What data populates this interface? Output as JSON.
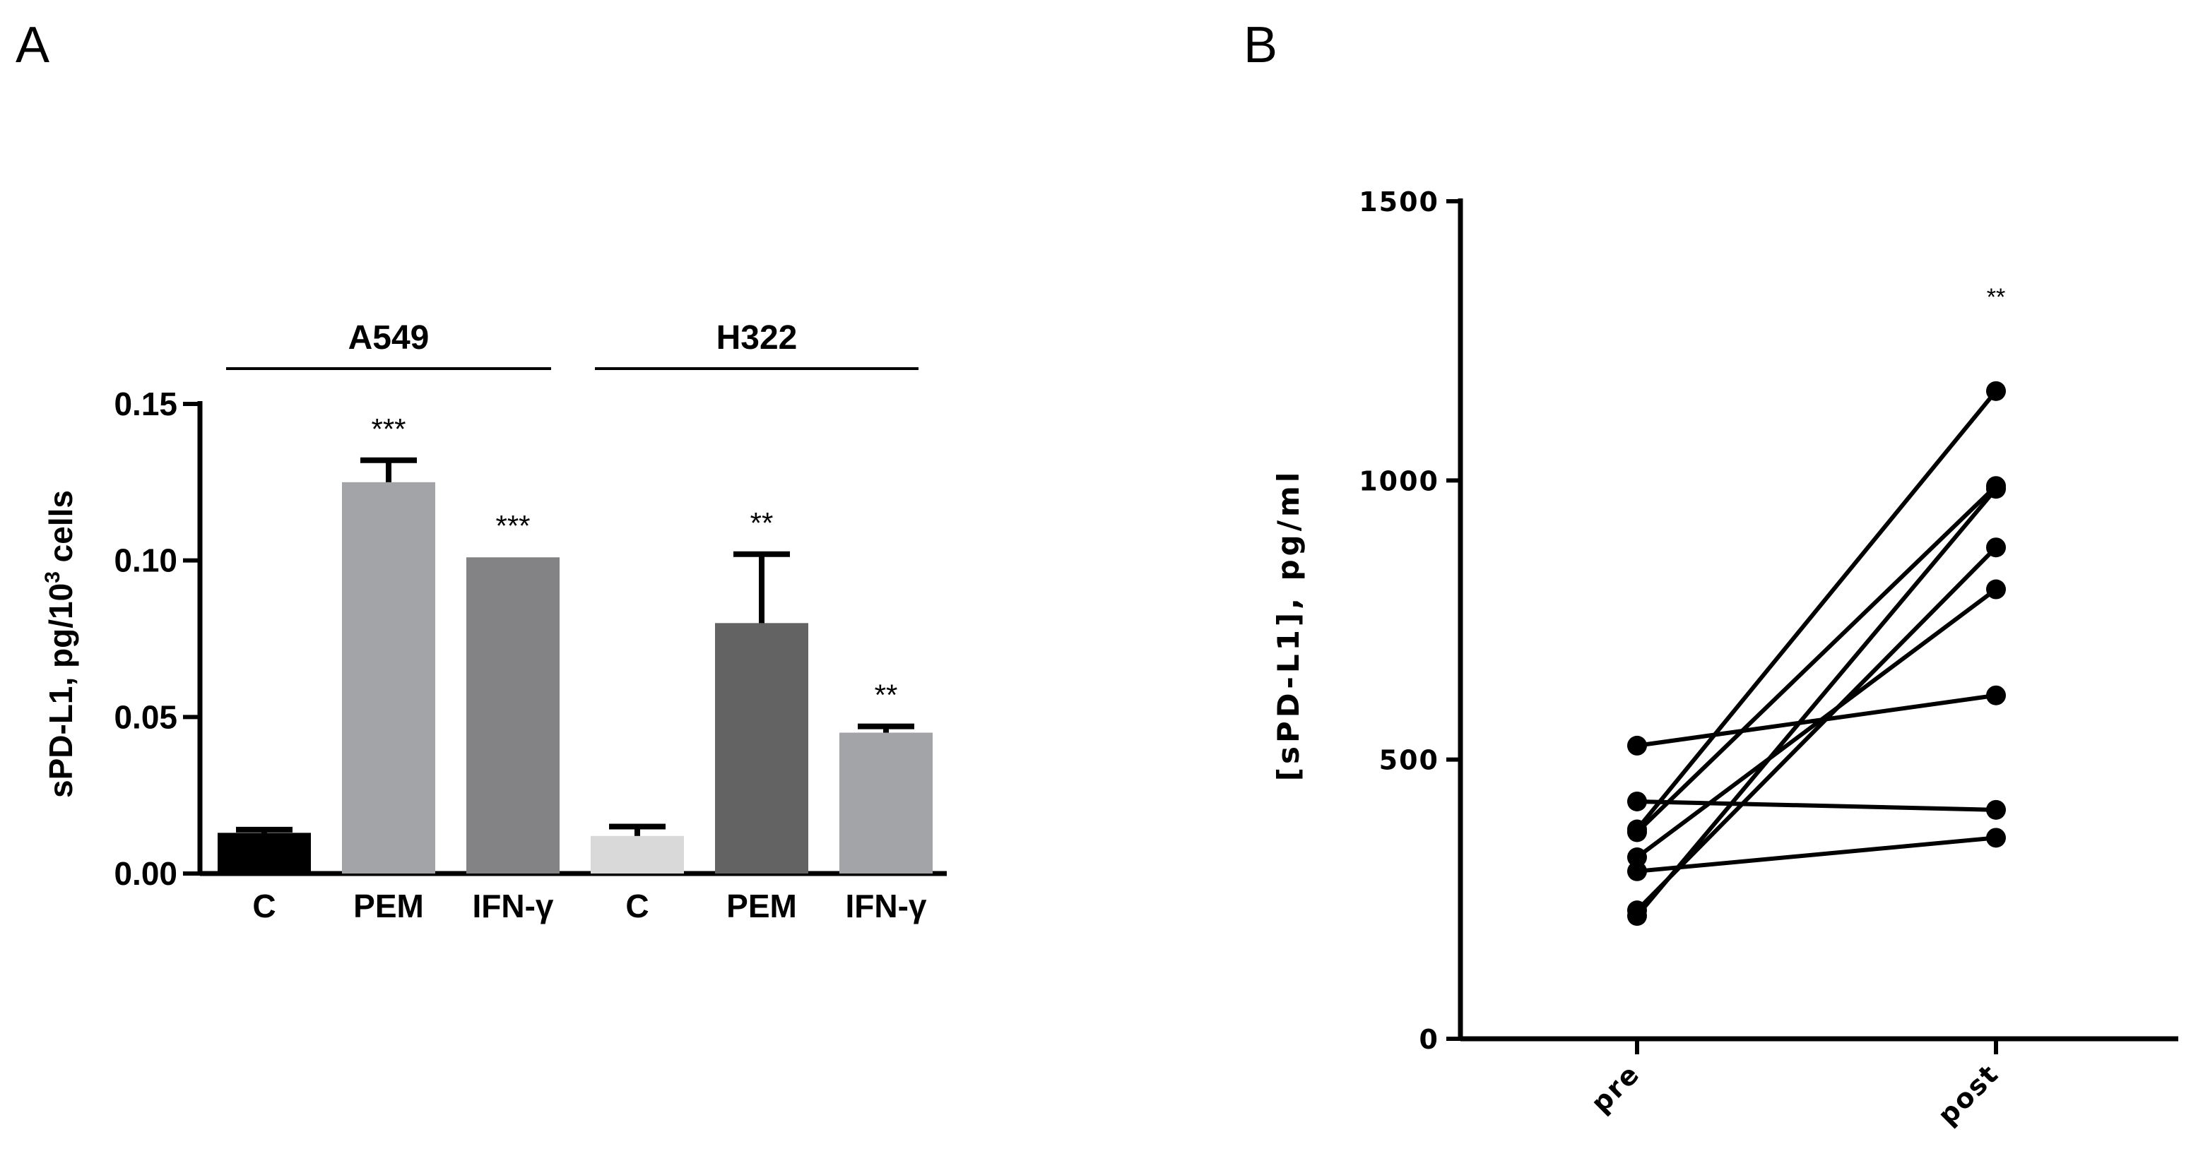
{
  "chart_data": [
    {
      "panel": "A",
      "type": "bar",
      "ylabel": "sPD-L1, pg/10",
      "ylabel_sup": "3",
      "ylabel_tail": " cells",
      "ylim": [
        0,
        0.15
      ],
      "yticks": [
        "0.00",
        "0.05",
        "0.10",
        "0.15"
      ],
      "ytick_values": [
        0,
        0.05,
        0.1,
        0.15
      ],
      "groups": [
        {
          "name": "A549",
          "categories": [
            "C",
            "PEM",
            "IFN-γ"
          ]
        },
        {
          "name": "H322",
          "categories": [
            "C",
            "PEM",
            "IFN-γ"
          ]
        }
      ],
      "categories": [
        "C",
        "PEM",
        "IFN-γ",
        "C",
        "PEM",
        "IFN-γ"
      ],
      "values": [
        0.013,
        0.125,
        0.101,
        0.012,
        0.08,
        0.045
      ],
      "errors": [
        0.001,
        0.007,
        0.0,
        0.003,
        0.022,
        0.002
      ],
      "significance": [
        "",
        "***",
        "***",
        "",
        "**",
        "**"
      ],
      "colors": [
        "#000000",
        "#a3a4a8",
        "#838385",
        "#d9d9d9",
        "#636363",
        "#a3a4a8"
      ]
    },
    {
      "panel": "B",
      "type": "line",
      "ylabel": "[sPD-L1], pg/ml",
      "ylim": [
        0,
        1500
      ],
      "yticks": [
        "0",
        "500",
        "1000",
        "1500"
      ],
      "ytick_values": [
        0,
        500,
        1000,
        1500
      ],
      "categories": [
        "pre",
        "post"
      ],
      "series": [
        {
          "values": [
            525,
            615
          ]
        },
        {
          "values": [
            425,
            410
          ]
        },
        {
          "values": [
            375,
            1160
          ]
        },
        {
          "values": [
            370,
            990
          ]
        },
        {
          "values": [
            325,
            805
          ]
        },
        {
          "values": [
            300,
            360
          ]
        },
        {
          "values": [
            230,
            880
          ]
        },
        {
          "values": [
            220,
            985
          ]
        }
      ],
      "significance": "**"
    }
  ]
}
